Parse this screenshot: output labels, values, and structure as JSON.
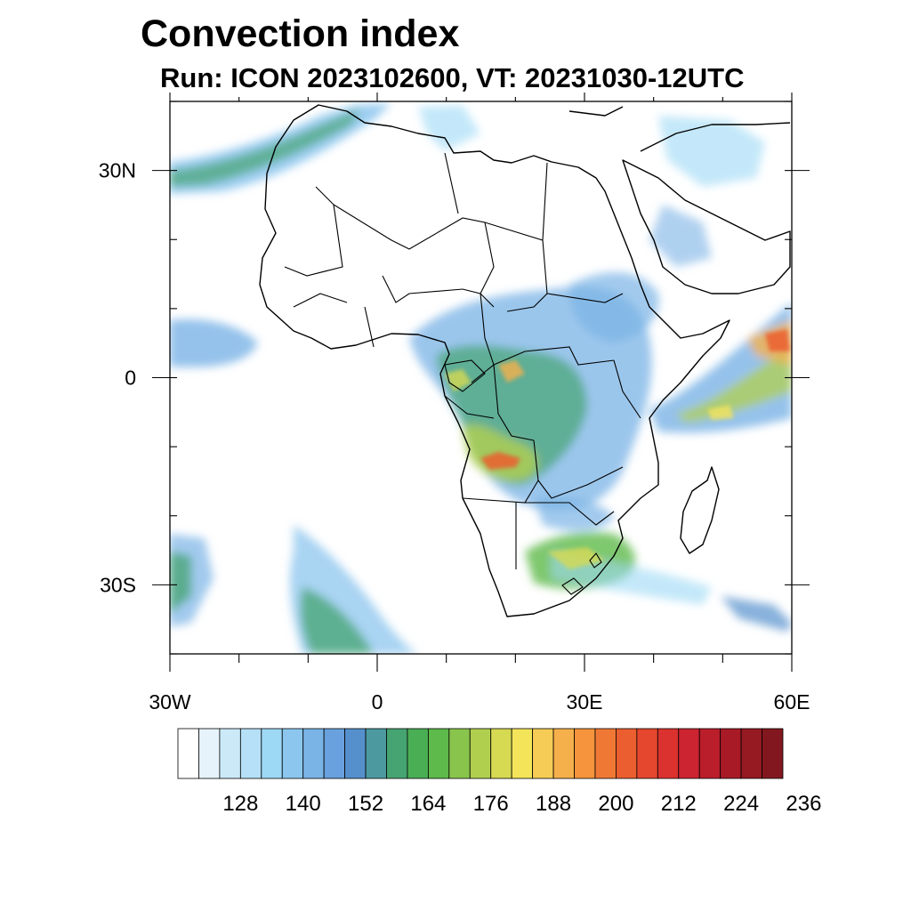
{
  "title": "Convection index",
  "subtitle": "Run: ICON 2023102600,  VT: 20231030-12UTC",
  "map": {
    "lon_range": [
      -30,
      60
    ],
    "lat_range": [
      -40,
      40
    ],
    "x_ticks": [
      {
        "lon": -30,
        "label": "30W"
      },
      {
        "lon": 0,
        "label": "0"
      },
      {
        "lon": 30,
        "label": "30E"
      },
      {
        "lon": 60,
        "label": "60E"
      }
    ],
    "y_ticks": [
      {
        "lat": 30,
        "label": "30N"
      },
      {
        "lat": 0,
        "label": "0"
      },
      {
        "lat": -30,
        "label": "30S"
      }
    ]
  },
  "colorbar": {
    "colors": [
      "#ffffff",
      "#e6f3fb",
      "#cce9f8",
      "#b5e0f7",
      "#9dd8f5",
      "#8cc6ee",
      "#7ab3e6",
      "#68a1dd",
      "#5590cc",
      "#4c9aa0",
      "#46a472",
      "#4aae55",
      "#5eba4a",
      "#89c44c",
      "#b1cf4f",
      "#d6d952",
      "#f3e45a",
      "#f6cc56",
      "#f6b04b",
      "#f5943c",
      "#f07835",
      "#eb5e2f",
      "#e4472e",
      "#db322f",
      "#cc2430",
      "#bb1e2b",
      "#a81a26",
      "#951a22",
      "#83171f"
    ],
    "labels": [
      "128",
      "140",
      "152",
      "164",
      "176",
      "188",
      "200",
      "212",
      "224",
      "236"
    ]
  }
}
